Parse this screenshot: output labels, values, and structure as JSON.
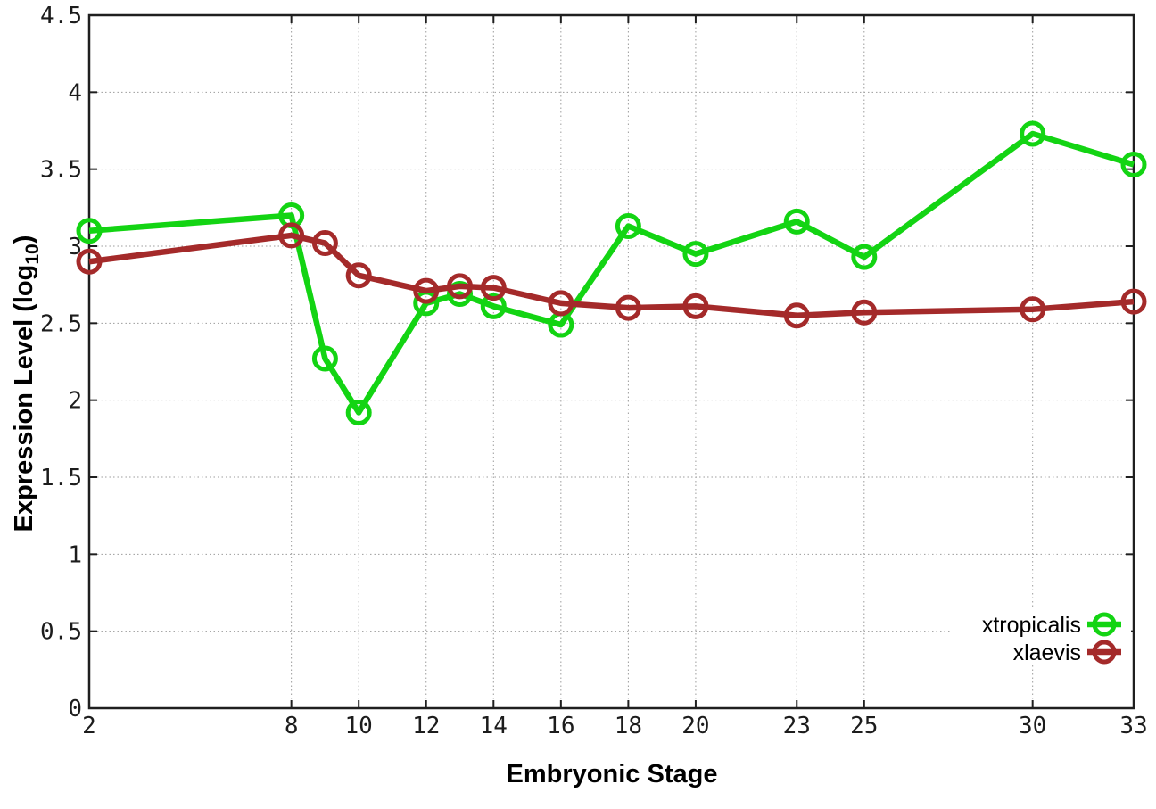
{
  "figure": {
    "background": "#ffffff"
  },
  "chart_data": {
    "type": "line",
    "title": "",
    "xlabel": "Embryonic Stage",
    "ylabel": "Expression Level (log10)",
    "ylabel_parts": {
      "prefix": "Expression Level (log",
      "sub": "10",
      "suffix": ")"
    },
    "x": [
      2,
      8,
      9,
      10,
      12,
      13,
      14,
      16,
      18,
      20,
      23,
      25,
      30,
      33
    ],
    "series": [
      {
        "name": "xtropicalis",
        "color": "#13d413",
        "values": [
          3.1,
          3.2,
          2.27,
          1.92,
          2.63,
          2.69,
          2.61,
          2.49,
          3.13,
          2.95,
          3.16,
          2.93,
          3.73,
          3.53
        ]
      },
      {
        "name": "xlaevis",
        "color": "#a42a2a",
        "values": [
          2.9,
          3.07,
          3.02,
          2.81,
          2.71,
          2.74,
          2.73,
          2.63,
          2.6,
          2.61,
          2.55,
          2.57,
          2.59,
          2.64
        ]
      }
    ],
    "xlim": [
      2,
      33
    ],
    "ylim": [
      0,
      4.5
    ],
    "xticks": [
      2,
      8,
      10,
      12,
      14,
      16,
      18,
      20,
      23,
      25,
      30,
      33
    ],
    "xtick_labels": [
      "2",
      "8",
      "10",
      "12",
      "14",
      "16",
      "18",
      "20",
      "23",
      "25",
      "30",
      "33"
    ],
    "yticks": [
      0,
      0.5,
      1,
      1.5,
      2,
      2.5,
      3,
      3.5,
      4,
      4.5
    ],
    "ytick_labels": [
      "0",
      "0.5",
      "1",
      "1.5",
      "2",
      "2.5",
      "3",
      "3.5",
      "4",
      "4.5"
    ],
    "grid": true,
    "grid_color": "#9c9c9c",
    "axis_color": "#1f1f1f",
    "legend_position": "bottom-right",
    "legend": [
      "xtropicalis",
      "xlaevis"
    ]
  }
}
